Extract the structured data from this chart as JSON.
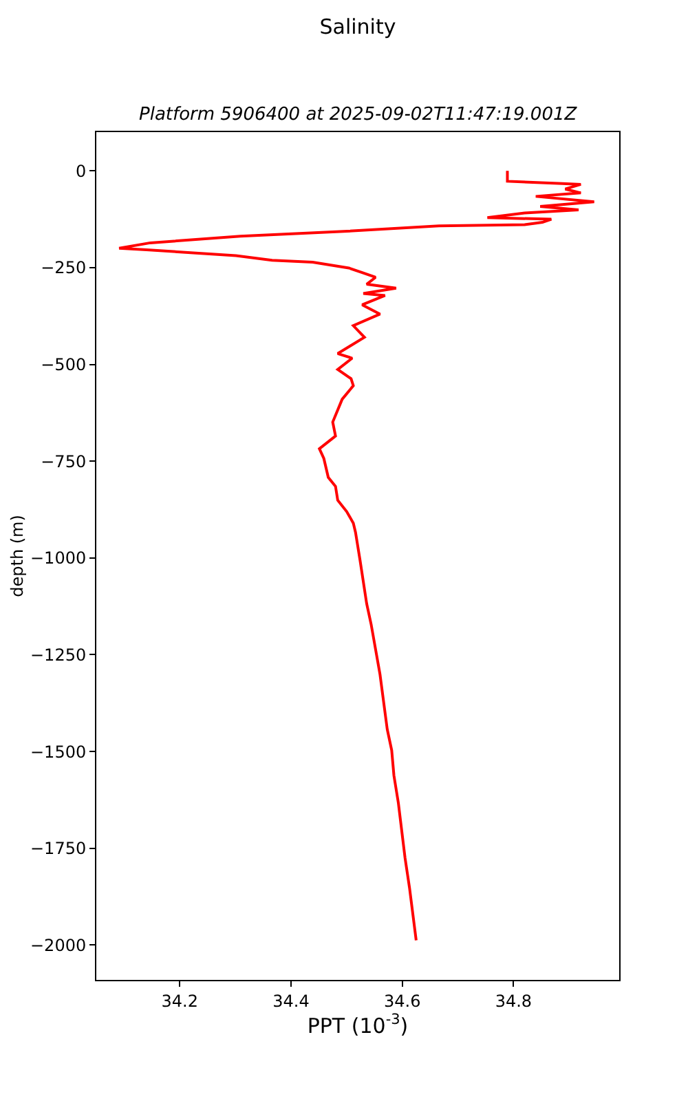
{
  "chart_data": {
    "type": "line",
    "title": "Salinity",
    "subtitle": "Platform 5906400 at 2025-09-02T11:47:19.001Z",
    "xlabel": "PPT (10$^{-3}$)",
    "ylabel": "depth (m)",
    "series": [
      {
        "color": "#ff0000",
        "x": [
          34.789,
          34.789,
          34.888,
          34.921,
          34.893,
          34.921,
          34.84,
          34.945,
          34.848,
          34.917,
          34.82,
          34.753,
          34.868,
          34.852,
          34.82,
          34.666,
          34.488,
          34.309,
          34.147,
          34.091,
          34.14,
          34.301,
          34.366,
          34.439,
          34.504,
          34.528,
          34.552,
          34.536,
          34.589,
          34.53,
          34.569,
          34.528,
          34.56,
          34.512,
          34.532,
          34.484,
          34.51,
          34.484,
          34.508,
          34.512,
          34.492,
          34.475,
          34.48,
          34.451,
          34.459,
          34.467,
          34.48,
          34.484,
          34.5,
          34.512,
          34.516,
          34.524,
          34.536,
          34.544,
          34.56,
          34.573,
          34.581,
          34.585,
          34.593,
          34.605,
          34.613,
          34.625
        ],
        "values": [
          0,
          -27,
          -33,
          -35,
          -47,
          -57,
          -66,
          -80,
          -92,
          -101,
          -109,
          -121,
          -125,
          -133,
          -139,
          -142,
          -157,
          -169,
          -186,
          -200,
          -204,
          -219,
          -231,
          -236,
          -251,
          -263,
          -275,
          -293,
          -303,
          -317,
          -322,
          -346,
          -370,
          -400,
          -430,
          -472,
          -484,
          -513,
          -537,
          -555,
          -590,
          -649,
          -685,
          -718,
          -743,
          -792,
          -815,
          -851,
          -880,
          -910,
          -934,
          -1005,
          -1118,
          -1171,
          -1301,
          -1443,
          -1497,
          -1562,
          -1633,
          -1775,
          -1852,
          -1988
        ]
      }
    ],
    "xlim": [
      34.05,
      34.99
    ],
    "xticks": [
      34.2,
      34.4,
      34.6,
      34.8
    ],
    "ylim": [
      -2090,
      100
    ],
    "yticks": [
      0,
      {
        "value": -250,
        "label": "−250"
      },
      {
        "value": -500,
        "label": "−500"
      },
      {
        "value": -750,
        "label": "−750"
      },
      {
        "value": -1000,
        "label": "−1000"
      },
      {
        "value": -1250,
        "label": "−1250"
      },
      {
        "value": -1500,
        "label": "−1500"
      },
      {
        "value": -1750,
        "label": "−1750"
      },
      {
        "value": -2000,
        "label": "−2000"
      }
    ],
    "line_style": "solid"
  }
}
